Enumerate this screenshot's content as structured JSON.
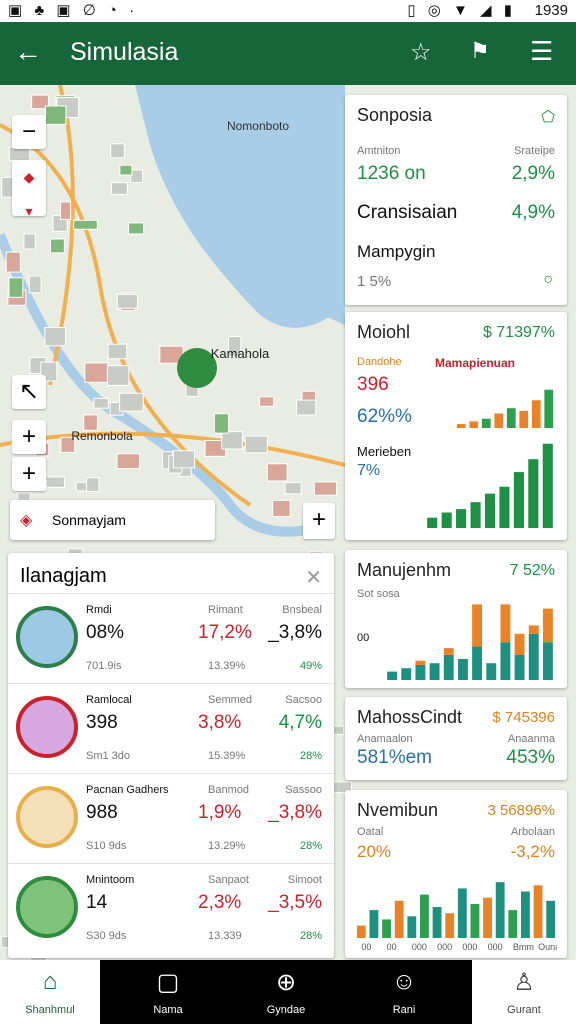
{
  "status_bar": {
    "time": "1939"
  },
  "app_bar": {
    "title": "Simulasia"
  },
  "map": {
    "labels": [
      "Nomonboto",
      "Kamahola",
      "Remonbola"
    ],
    "search": "Sonmayjam"
  },
  "cards": [
    {
      "title": "Sonposia",
      "label_a": "Amtniton",
      "label_b": "Srateipe",
      "value_a": "1236 on",
      "value_b": "2,9%",
      "row2_label": "Cransisaian",
      "row2_value": "4,9%",
      "row3_label": "Mampygin",
      "row3_value": "1 5%"
    },
    {
      "title": "Moiohl",
      "headline": "$ 71397%",
      "label_a": "Dandohe",
      "legend": "Mamapienuan",
      "value_a": "396",
      "value_b": "62%%",
      "label_b": "Merieben",
      "value_c": "7%"
    },
    {
      "title": "Manujenhm",
      "headline": "7 52%",
      "label_a": "Sot sosa",
      "label_b": "00"
    },
    {
      "title": "MahossCindt",
      "headline": "$ 745396",
      "label_a": "Anamaalon",
      "label_b": "Anaanma",
      "value_a": "581%em",
      "value_b": "453%"
    },
    {
      "title": "Nvemibun",
      "headline": "3 56896%",
      "label_a": "Oatal",
      "label_b": "Arbolaan",
      "value_a": "20%",
      "value_b": "-3,2%"
    }
  ],
  "charts": {
    "mix": {
      "type": "bar",
      "values": [
        6,
        10,
        14,
        22,
        30,
        26,
        42,
        58
      ],
      "colors": [
        "#e8832a",
        "#e8832a",
        "#2e9e4f",
        "#e8832a",
        "#2e9e4f",
        "#e8832a",
        "#e8832a",
        "#2e9e4f"
      ]
    },
    "growth": {
      "type": "bar",
      "values": [
        12,
        18,
        22,
        30,
        40,
        48,
        65,
        80,
        98
      ],
      "color": "#1f8f45"
    },
    "stacked": {
      "type": "bar",
      "series": [
        {
          "color": "#1f8f80",
          "values": [
            10,
            14,
            18,
            20,
            30,
            25,
            40,
            20,
            45,
            30,
            55,
            45
          ]
        },
        {
          "color": "#e8832a",
          "values": [
            0,
            0,
            5,
            0,
            8,
            0,
            50,
            0,
            45,
            25,
            10,
            40
          ]
        }
      ]
    },
    "spread": {
      "type": "bar",
      "values": [
        20,
        45,
        30,
        60,
        35,
        70,
        50,
        40,
        80,
        55,
        65,
        90,
        45,
        75,
        85,
        60
      ],
      "colors": [
        "#e8832a",
        "#1f8f80",
        "#2e9e4f",
        "#e8832a",
        "#1f8f80",
        "#2e9e4f",
        "#1f8f80",
        "#e8832a",
        "#1f8f80",
        "#2e9e4f",
        "#e8832a",
        "#1f8f80",
        "#2e9e4f",
        "#1f8f80",
        "#e8832a",
        "#1f8f80"
      ],
      "categories": [
        "00",
        null,
        "00",
        null,
        "000",
        null,
        "000",
        null,
        "000",
        null,
        "000",
        null,
        "Bmm",
        null,
        "Ounat",
        null
      ]
    }
  },
  "list": {
    "title": "Ilanagjam",
    "rows": [
      {
        "name": "Rmdi",
        "value": "08%",
        "sub": "701.9is",
        "label_b": "Rimant",
        "value_b": "17,2%",
        "sub_b": "13.39%",
        "label_c": "Bnsbeal",
        "value_c": "_3,8%",
        "sub_c": "49%"
      },
      {
        "name": "Ramlocal",
        "value": "398",
        "sub": "Sm1 3do",
        "label_b": "Semmed",
        "value_b": "3,8%",
        "sub_b": "15.39%",
        "label_c": "Sacsoo",
        "value_c": "4,7%",
        "sub_c": "28%"
      },
      {
        "name": "Pacnan Gadhers",
        "value": "988",
        "sub": "S10 9ds",
        "label_b": "Banmod",
        "value_b": "1,9%",
        "sub_b": "13.29%",
        "label_c": "Sassoo",
        "value_c": "_3,8%",
        "sub_c": "28%"
      },
      {
        "name": "Mnintoom",
        "value": "14",
        "sub": "S30 9ds",
        "label_b": "Sanpaot",
        "value_b": "2,3%",
        "sub_b": "13.339",
        "label_c": "Simoot",
        "value_c": "_3,5%",
        "sub_c": "28%"
      }
    ]
  },
  "nav": [
    "Shanhmul",
    "Nama",
    "Gyndae",
    "Rani",
    "Gurant"
  ]
}
